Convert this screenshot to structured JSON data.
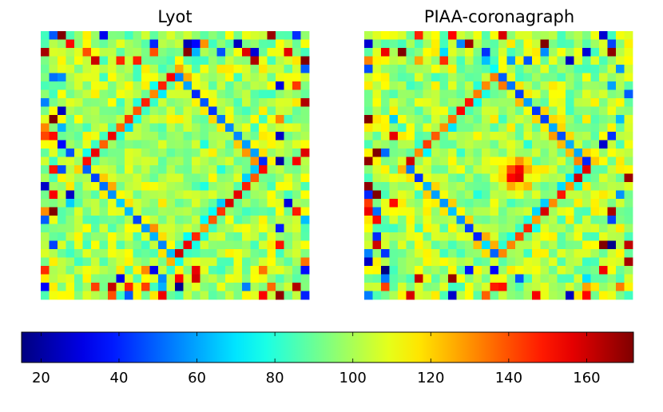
{
  "chart_data": [
    {
      "type": "heatmap",
      "title": "Lyot",
      "grid": "32x32",
      "pattern": "speckle map with diamond-shaped ring structure",
      "value_range": [
        15,
        172
      ]
    },
    {
      "type": "heatmap",
      "title": "PIAA-coronagraph",
      "grid": "32x32",
      "pattern": "speckle map with diamond-shaped ring structure and a hot spot near center",
      "value_range": [
        15,
        172
      ]
    }
  ],
  "colorbar": {
    "colormap": "jet",
    "vmin": 15,
    "vmax": 172,
    "ticks": [
      "20",
      "40",
      "60",
      "80",
      "100",
      "120",
      "140",
      "160"
    ],
    "tick_values": [
      20,
      40,
      60,
      80,
      100,
      120,
      140,
      160
    ]
  },
  "colors": {
    "background": "#ffffff",
    "frame": "#000000"
  }
}
